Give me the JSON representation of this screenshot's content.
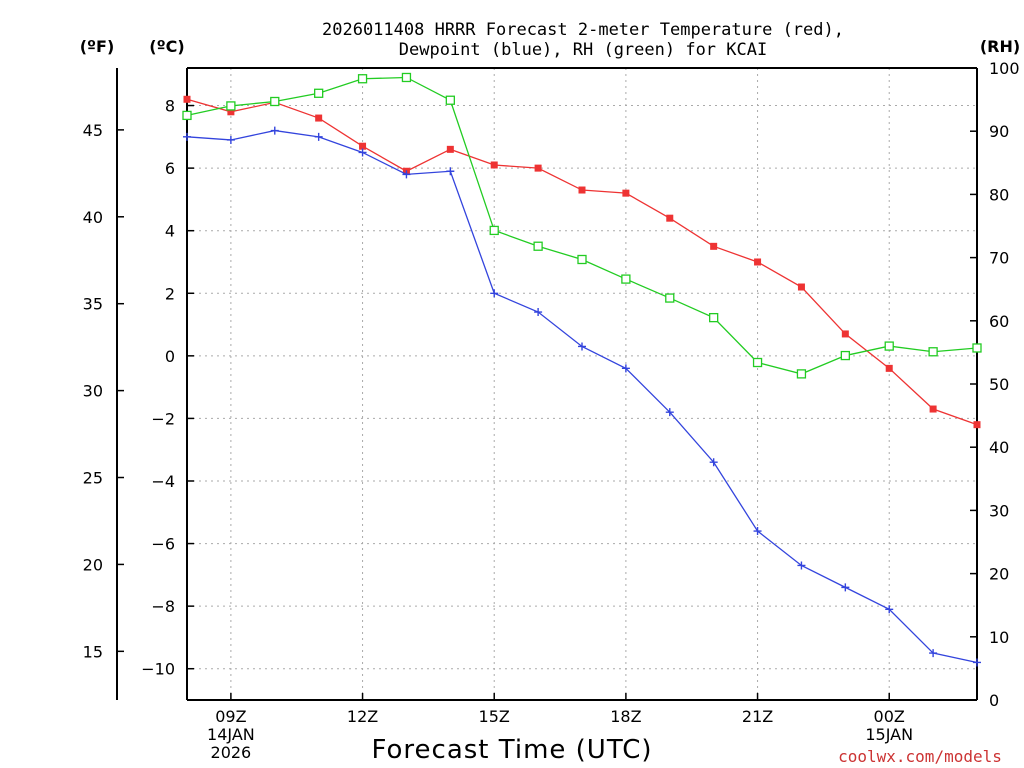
{
  "title_line1": "2026011408 HRRR Forecast 2-meter Temperature (red),",
  "title_line2": "Dewpoint (blue), RH (green) for KCAI",
  "unit_f": "(ºF)",
  "unit_c": "(ºC)",
  "unit_rh": "(RH)",
  "credit": "coolwx.com/models",
  "chart_data": {
    "type": "line",
    "title": "2026011408 HRRR Forecast 2-meter Temperature (red), Dewpoint (blue), RH (green) for KCAI",
    "xlabel": "Forecast Time (UTC)",
    "x_hours": [
      8,
      9,
      10,
      11,
      12,
      13,
      14,
      15,
      16,
      17,
      18,
      19,
      20,
      21,
      22,
      23,
      24,
      25,
      26
    ],
    "x_ticks": [
      {
        "hour": 9,
        "lines": [
          "09Z",
          "14JAN",
          "2026"
        ]
      },
      {
        "hour": 12,
        "lines": [
          "12Z"
        ]
      },
      {
        "hour": 15,
        "lines": [
          "15Z"
        ]
      },
      {
        "hour": 18,
        "lines": [
          "18Z"
        ]
      },
      {
        "hour": 21,
        "lines": [
          "21Z"
        ]
      },
      {
        "hour": 24,
        "lines": [
          "00Z",
          "15JAN"
        ]
      }
    ],
    "xlim": [
      8,
      26
    ],
    "y_celsius": {
      "lim": [
        -11,
        9.2
      ],
      "ticks": [
        8,
        6,
        4,
        2,
        0,
        -2,
        -4,
        -6,
        -8,
        -10
      ],
      "labels": [
        "8",
        "6",
        "4",
        "2",
        "0",
        "−2",
        "−4",
        "−6",
        "−8",
        "−10"
      ]
    },
    "y_fahrenheit": {
      "ticks": [
        45,
        40,
        35,
        30,
        25,
        20,
        15
      ],
      "labels": [
        "45",
        "40",
        "35",
        "30",
        "25",
        "20",
        "15"
      ]
    },
    "y_rh": {
      "lim": [
        0,
        100
      ],
      "ticks": [
        100,
        90,
        80,
        70,
        60,
        50,
        40,
        30,
        20,
        10,
        0
      ],
      "labels": [
        "100",
        "90",
        "80",
        "70",
        "60",
        "50",
        "40",
        "30",
        "20",
        "10",
        "0"
      ]
    },
    "series": [
      {
        "name": "Temperature",
        "axis": "celsius",
        "color": "#ee3333",
        "marker": "filled-square",
        "values": [
          8.2,
          7.8,
          8.1,
          7.6,
          6.7,
          5.9,
          6.6,
          6.1,
          6.0,
          5.3,
          5.2,
          4.4,
          3.5,
          3.0,
          2.2,
          0.7,
          -0.4,
          -1.7,
          -2.2
        ]
      },
      {
        "name": "Dewpoint",
        "axis": "celsius",
        "color": "#3344dd",
        "marker": "plus",
        "values": [
          7.0,
          6.9,
          7.2,
          7.0,
          6.5,
          5.8,
          5.9,
          2.0,
          1.4,
          0.3,
          -0.4,
          -1.8,
          -3.4,
          -5.6,
          -6.7,
          -7.4,
          -8.1,
          -9.5,
          -9.8
        ]
      },
      {
        "name": "RH",
        "axis": "rh",
        "color": "#22cc22",
        "marker": "open-square",
        "values": [
          92.5,
          94.0,
          94.7,
          96.0,
          98.3,
          98.5,
          94.9,
          74.3,
          71.8,
          69.7,
          66.6,
          63.6,
          60.5,
          53.4,
          51.6,
          54.5,
          56.0,
          55.1,
          55.7
        ]
      }
    ]
  }
}
